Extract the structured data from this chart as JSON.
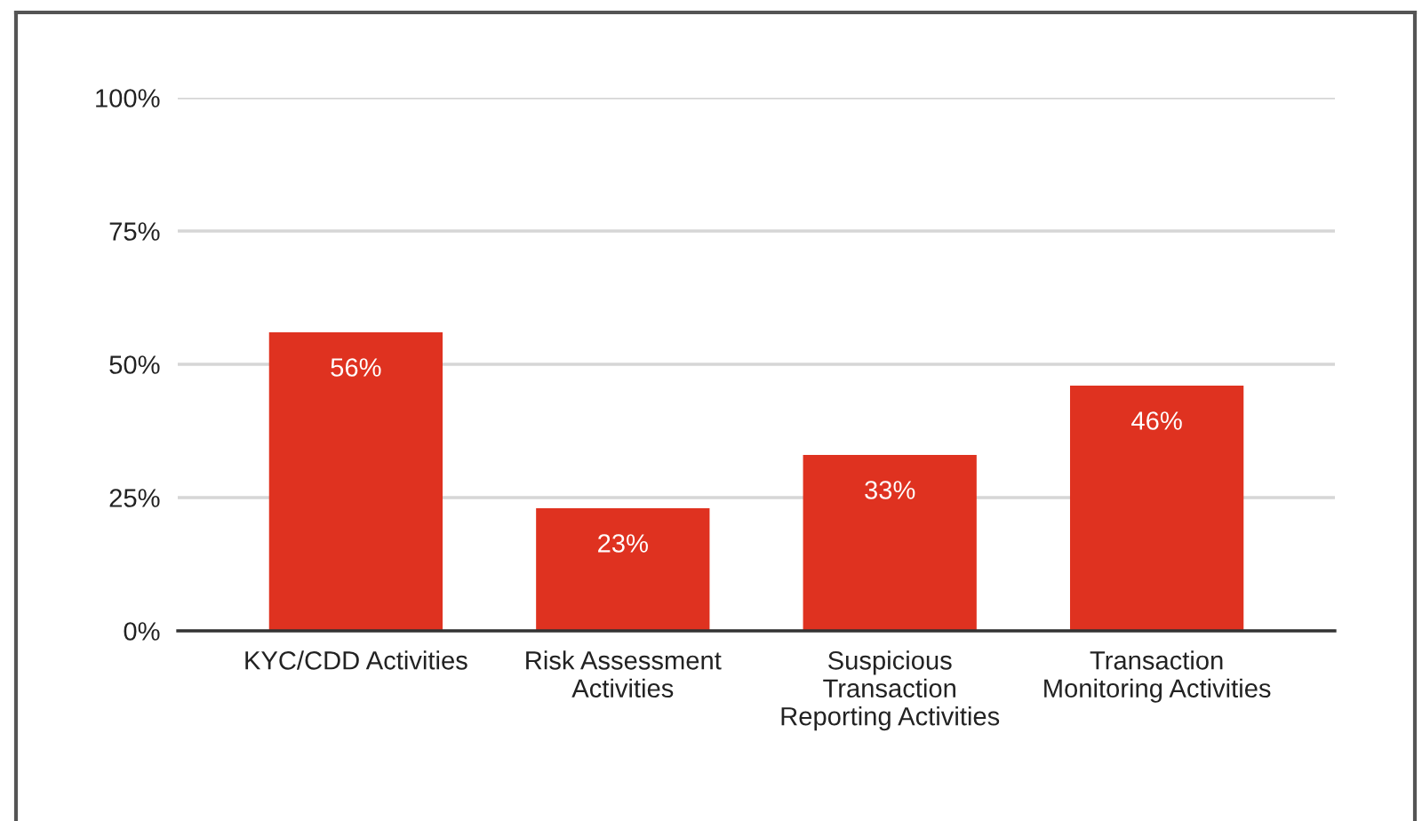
{
  "chart_data": {
    "type": "bar",
    "categories": [
      "KYC/CDD Activities",
      "Risk Assessment\nActivities",
      "Suspicious\nTransaction\nReporting Activities",
      "Transaction\nMonitoring Activities"
    ],
    "values": [
      56,
      23,
      33,
      46
    ],
    "color": "#df3220",
    "value_labels": [
      "56%",
      "23%",
      "33%",
      "46%"
    ],
    "ylim": [
      0,
      100
    ],
    "yticks": [
      {
        "value": 0,
        "label": "0%"
      },
      {
        "value": 25,
        "label": "25%"
      },
      {
        "value": 50,
        "label": "50%"
      },
      {
        "value": 75,
        "label": "75%"
      },
      {
        "value": 100,
        "label": "100%"
      }
    ],
    "grid": "y"
  }
}
